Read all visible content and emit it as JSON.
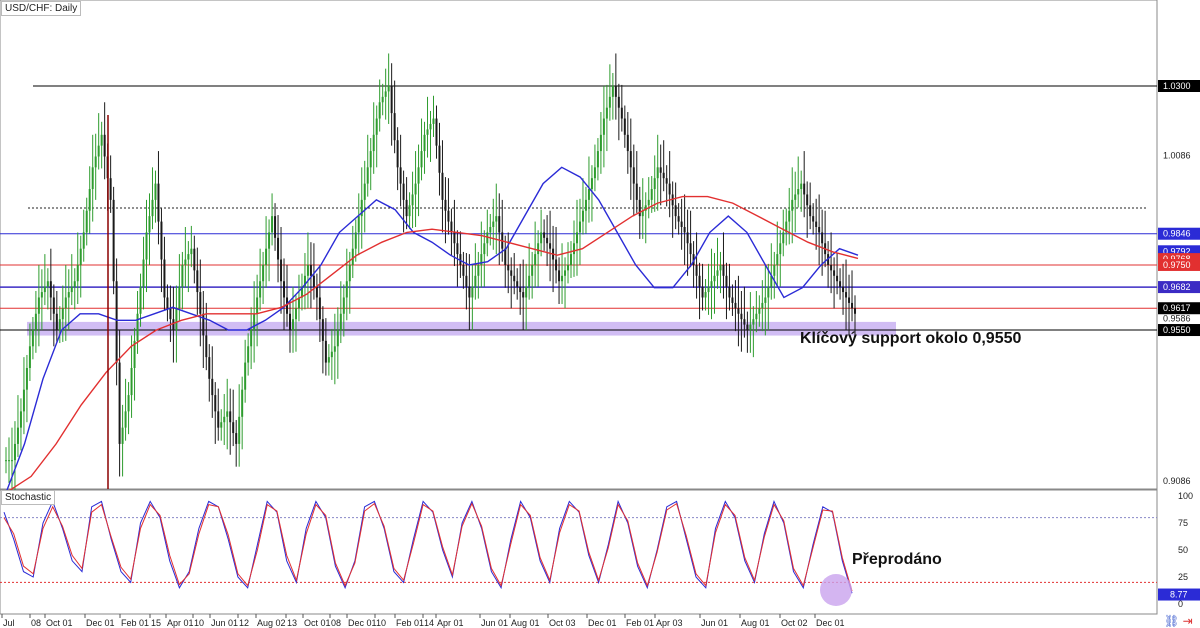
{
  "chart_data": [
    {
      "type": "line",
      "title": "USD/CHF: Daily",
      "xlabel": "",
      "ylabel": "",
      "ylim": [
        0.905,
        1.045
      ],
      "y_ticks": [
        "1.0300",
        "1.0086",
        "0.9086"
      ],
      "x_ticks": [
        "Jul",
        "08",
        "Oct 01",
        "Dec 01",
        "Feb 01",
        "15",
        "Apr 01",
        "10",
        "Jun 01",
        "12",
        "Aug 02",
        "13",
        "Oct 01",
        "08",
        "Dec 01",
        "10",
        "Feb 01",
        "14",
        "Apr 01",
        "Jun 01",
        "Aug 01",
        "Oct 03",
        "Dec 01",
        "Feb 01",
        "Apr 03",
        "Jun 01",
        "Aug 01",
        "Oct 02",
        "Dec 01"
      ],
      "price_levels": [
        {
          "value": "1.0300",
          "label_color": "#000000",
          "line_color": "#000000",
          "style": "solid"
        },
        {
          "value": "0.9846",
          "label_color": "#2b2bd6",
          "line_color": "#2b2bd6",
          "style": "solid"
        },
        {
          "value": "0.9792",
          "label_color": "#2b2bd6",
          "line_color": "#2b2bd6",
          "style": "none"
        },
        {
          "value": "0.9768",
          "label_color": "#e23030",
          "line_color": "#e23030",
          "style": "none"
        },
        {
          "value": "0.9750",
          "label_color": "#e23030",
          "line_color": "#e23030",
          "style": "solid"
        },
        {
          "value": "0.9682",
          "label_color": "#3b2bc4",
          "line_color": "#3b2bc4",
          "style": "solid"
        },
        {
          "value": "0.9617",
          "label_color": "#000000",
          "line_color": "#e23030",
          "style": "solid"
        },
        {
          "value": "0.9586",
          "label_color": "#ffffff",
          "line_color": "none",
          "style": "none"
        },
        {
          "value": "0.9550",
          "label_color": "#000000",
          "line_color": "#000000",
          "style": "solid"
        }
      ],
      "dotted_level": 0.9925,
      "support_zone": [
        0.9533,
        0.9575
      ],
      "series": [
        {
          "name": "",
          "role": "price candles",
          "color_up": "#2e9c2e",
          "color_down": "#1a1a1a",
          "values": [
            0.915,
            0.93,
            0.95,
            0.965,
            0.97,
            0.955,
            0.965,
            0.97,
            0.985,
            1.005,
            1.015,
            0.995,
            0.92,
            0.935,
            0.96,
            0.985,
            1.0,
            0.965,
            0.955,
            0.975,
            0.98,
            0.96,
            0.94,
            0.925,
            0.93,
            0.92,
            0.945,
            0.96,
            0.975,
            0.99,
            0.97,
            0.955,
            0.965,
            0.975,
            0.965,
            0.945,
            0.95,
            0.965,
            0.98,
            0.995,
            1.01,
            1.025,
            1.03,
            1.005,
            0.99,
            1.0,
            1.015,
            1.02,
            0.995,
            0.985,
            0.975,
            0.965,
            0.975,
            0.985,
            0.99,
            0.975,
            0.97,
            0.965,
            0.975,
            0.985,
            0.98,
            0.97,
            0.975,
            0.985,
            0.995,
            1.005,
            1.02,
            1.03,
            1.02,
            1.005,
            0.99,
            0.995,
            1.005,
            1.0,
            0.99,
            0.985,
            0.975,
            0.965,
            0.97,
            0.975,
            0.965,
            0.96,
            0.955,
            0.96,
            0.965,
            0.975,
            0.985,
            0.995,
            1.0,
            0.99,
            0.985,
            0.975,
            0.97,
            0.965,
            0.96
          ]
        },
        {
          "name": "",
          "role": "moving average",
          "color": "#2b2bd6",
          "values": [
            0.905,
            0.92,
            0.94,
            0.955,
            0.96,
            0.96,
            0.958,
            0.958,
            0.96,
            0.962,
            0.96,
            0.958,
            0.955,
            0.955,
            0.958,
            0.962,
            0.968,
            0.975,
            0.985,
            0.99,
            0.995,
            0.992,
            0.985,
            0.982,
            0.978,
            0.975,
            0.976,
            0.98,
            0.99,
            1.0,
            1.005,
            1.002,
            0.995,
            0.985,
            0.975,
            0.968,
            0.968,
            0.975,
            0.985,
            0.99,
            0.985,
            0.975,
            0.965,
            0.968,
            0.975,
            0.98,
            0.978
          ]
        },
        {
          "name": "",
          "role": "moving average",
          "color": "#e23030",
          "values": [
            0.905,
            0.91,
            0.92,
            0.932,
            0.942,
            0.95,
            0.955,
            0.958,
            0.96,
            0.96,
            0.96,
            0.962,
            0.966,
            0.972,
            0.978,
            0.982,
            0.985,
            0.986,
            0.985,
            0.984,
            0.982,
            0.98,
            0.978,
            0.98,
            0.985,
            0.99,
            0.994,
            0.996,
            0.996,
            0.994,
            0.99,
            0.986,
            0.982,
            0.979,
            0.977
          ]
        }
      ]
    },
    {
      "type": "line",
      "title": "Stochastic",
      "ylim": [
        0,
        100
      ],
      "y_ticks": [
        "100",
        "75",
        "50",
        "25",
        "0"
      ],
      "current_value": "8.77",
      "levels": [
        80,
        20
      ],
      "series": [
        {
          "name": "",
          "color": "#2b2bd6",
          "values": [
            85,
            60,
            30,
            25,
            75,
            95,
            70,
            40,
            30,
            90,
            95,
            60,
            30,
            20,
            75,
            95,
            80,
            40,
            15,
            30,
            70,
            95,
            90,
            60,
            25,
            15,
            55,
            95,
            85,
            40,
            20,
            70,
            95,
            80,
            35,
            15,
            40,
            90,
            95,
            70,
            30,
            20,
            60,
            95,
            85,
            50,
            25,
            75,
            95,
            70,
            30,
            15,
            60,
            95,
            80,
            40,
            20,
            70,
            95,
            85,
            45,
            20,
            55,
            95,
            75,
            35,
            15,
            50,
            90,
            95,
            60,
            25,
            15,
            70,
            95,
            80,
            40,
            20,
            65,
            95,
            75,
            30,
            15,
            55,
            90,
            85,
            40,
            10
          ]
        },
        {
          "name": "",
          "color": "#e23030",
          "values": [
            80,
            65,
            35,
            28,
            70,
            90,
            72,
            45,
            33,
            85,
            92,
            62,
            34,
            23,
            70,
            92,
            82,
            45,
            18,
            28,
            65,
            92,
            90,
            64,
            28,
            17,
            50,
            92,
            86,
            45,
            22,
            65,
            92,
            82,
            38,
            17,
            38,
            86,
            93,
            72,
            33,
            22,
            56,
            92,
            86,
            53,
            27,
            72,
            93,
            72,
            33,
            17,
            56,
            92,
            82,
            43,
            22,
            66,
            92,
            86,
            48,
            22,
            52,
            92,
            77,
            38,
            17,
            48,
            87,
            93,
            63,
            28,
            17,
            66,
            92,
            82,
            43,
            22,
            62,
            92,
            77,
            33,
            17,
            52,
            87,
            86,
            43,
            12
          ]
        }
      ]
    }
  ],
  "annotations": {
    "support_text": "Klíčový support okolo 0,9550",
    "oversold_text": "Přeprodáno"
  },
  "colors": {
    "support_zone": "#c9b2f2",
    "oversold_marker": "#c9a3ee",
    "grid_dotted": "#8888c8"
  }
}
